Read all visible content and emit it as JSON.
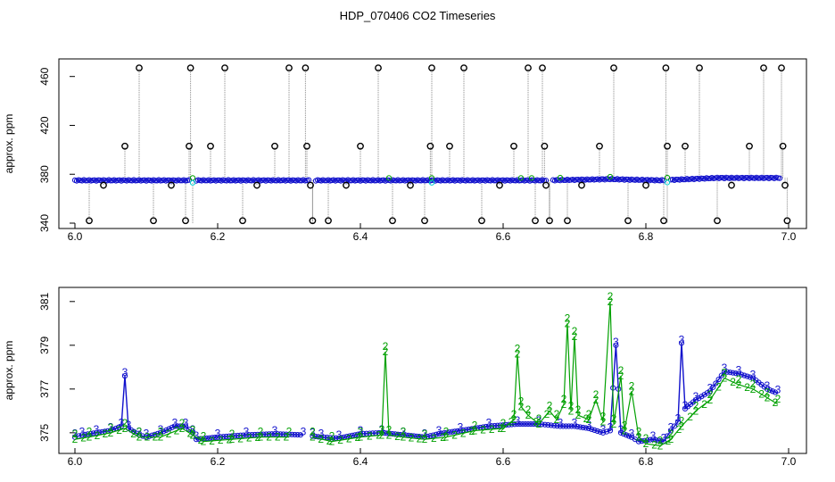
{
  "title": "HDP_070406  CO2 Timeseries",
  "colors": {
    "black": "#000000",
    "grey": "#888888",
    "blue": "#1010cc",
    "green": "#00a000",
    "cyan": "#00cccc"
  },
  "chart_data": [
    {
      "type": "scatter",
      "ylabel": "approx. ppm",
      "xlim": [
        6.0,
        7.0
      ],
      "ylim": [
        340,
        470
      ],
      "xticks": [
        "6.0",
        "6.2",
        "6.4",
        "6.6",
        "6.8",
        "7.0"
      ],
      "yticks": [
        "340",
        "380",
        "420",
        "460"
      ],
      "baseline": [
        {
          "x": 6.0,
          "y": 375
        },
        {
          "x": 6.33,
          "y": 375
        },
        {
          "x": 6.5,
          "y": 375
        },
        {
          "x": 6.66,
          "y": 375
        },
        {
          "x": 6.75,
          "y": 376
        },
        {
          "x": 6.82,
          "y": 375
        },
        {
          "x": 6.9,
          "y": 377
        },
        {
          "x": 6.99,
          "y": 377
        }
      ],
      "gaps": [
        6.165,
        6.333,
        6.665,
        6.83
      ],
      "spikes": [
        {
          "x": 6.02,
          "y": 342
        },
        {
          "x": 6.04,
          "y": 371
        },
        {
          "x": 6.07,
          "y": 403
        },
        {
          "x": 6.09,
          "y": 467
        },
        {
          "x": 6.11,
          "y": 342
        },
        {
          "x": 6.135,
          "y": 371
        },
        {
          "x": 6.155,
          "y": 342
        },
        {
          "x": 6.16,
          "y": 403
        },
        {
          "x": 6.162,
          "y": 467
        },
        {
          "x": 6.19,
          "y": 403
        },
        {
          "x": 6.21,
          "y": 467
        },
        {
          "x": 6.235,
          "y": 342
        },
        {
          "x": 6.255,
          "y": 371
        },
        {
          "x": 6.28,
          "y": 403
        },
        {
          "x": 6.3,
          "y": 467
        },
        {
          "x": 6.323,
          "y": 467
        },
        {
          "x": 6.325,
          "y": 403
        },
        {
          "x": 6.33,
          "y": 371
        },
        {
          "x": 6.333,
          "y": 342
        },
        {
          "x": 6.355,
          "y": 342
        },
        {
          "x": 6.38,
          "y": 371
        },
        {
          "x": 6.4,
          "y": 403
        },
        {
          "x": 6.425,
          "y": 467
        },
        {
          "x": 6.445,
          "y": 342
        },
        {
          "x": 6.47,
          "y": 371
        },
        {
          "x": 6.49,
          "y": 342
        },
        {
          "x": 6.498,
          "y": 403
        },
        {
          "x": 6.5,
          "y": 467
        },
        {
          "x": 6.525,
          "y": 403
        },
        {
          "x": 6.545,
          "y": 467
        },
        {
          "x": 6.57,
          "y": 342
        },
        {
          "x": 6.595,
          "y": 371
        },
        {
          "x": 6.615,
          "y": 403
        },
        {
          "x": 6.635,
          "y": 467
        },
        {
          "x": 6.645,
          "y": 342
        },
        {
          "x": 6.655,
          "y": 467
        },
        {
          "x": 6.658,
          "y": 403
        },
        {
          "x": 6.66,
          "y": 371
        },
        {
          "x": 6.665,
          "y": 342
        },
        {
          "x": 6.69,
          "y": 342
        },
        {
          "x": 6.71,
          "y": 371
        },
        {
          "x": 6.735,
          "y": 403
        },
        {
          "x": 6.755,
          "y": 467
        },
        {
          "x": 6.775,
          "y": 342
        },
        {
          "x": 6.8,
          "y": 371
        },
        {
          "x": 6.825,
          "y": 342
        },
        {
          "x": 6.828,
          "y": 467
        },
        {
          "x": 6.83,
          "y": 403
        },
        {
          "x": 6.855,
          "y": 403
        },
        {
          "x": 6.875,
          "y": 467
        },
        {
          "x": 6.9,
          "y": 342
        },
        {
          "x": 6.92,
          "y": 371
        },
        {
          "x": 6.945,
          "y": 403
        },
        {
          "x": 6.965,
          "y": 467
        },
        {
          "x": 6.99,
          "y": 467
        },
        {
          "x": 6.992,
          "y": 403
        },
        {
          "x": 6.995,
          "y": 371
        },
        {
          "x": 6.998,
          "y": 342
        }
      ]
    },
    {
      "type": "line",
      "ylabel": "approx. ppm",
      "xlim": [
        6.0,
        7.0
      ],
      "ylim": [
        374.3,
        381.4
      ],
      "xticks": [
        "6.0",
        "6.2",
        "6.4",
        "6.6",
        "6.8",
        "7.0"
      ],
      "yticks": [
        "375",
        "377",
        "379",
        "381"
      ],
      "series": [
        {
          "marker": "3",
          "points": [
            [
              6.0,
              374.8
            ],
            [
              6.01,
              374.9
            ],
            [
              6.03,
              375.0
            ],
            [
              6.05,
              375.1
            ],
            [
              6.065,
              375.3
            ],
            [
              6.07,
              377.6
            ],
            [
              6.075,
              375.2
            ],
            [
              6.09,
              374.9
            ],
            [
              6.1,
              374.8
            ],
            [
              6.12,
              375.0
            ],
            [
              6.14,
              375.3
            ],
            [
              6.155,
              375.3
            ],
            [
              6.165,
              375.0
            ],
            [
              6.17,
              374.7
            ],
            [
              6.2,
              374.8
            ],
            [
              6.24,
              374.9
            ],
            [
              6.28,
              374.95
            ],
            [
              6.32,
              374.9
            ],
            [
              6.333,
              374.85
            ],
            [
              6.345,
              374.8
            ],
            [
              6.37,
              374.75
            ],
            [
              6.4,
              374.95
            ],
            [
              6.43,
              375.0
            ],
            [
              6.46,
              374.9
            ],
            [
              6.49,
              374.8
            ],
            [
              6.51,
              374.95
            ],
            [
              6.54,
              375.1
            ],
            [
              6.58,
              375.3
            ],
            [
              6.62,
              375.4
            ],
            [
              6.65,
              375.4
            ],
            [
              6.68,
              375.3
            ],
            [
              6.7,
              375.3
            ],
            [
              6.72,
              375.2
            ],
            [
              6.74,
              375.0
            ],
            [
              6.75,
              375.1
            ],
            [
              6.758,
              379.0
            ],
            [
              6.765,
              375.0
            ],
            [
              6.78,
              374.8
            ],
            [
              6.79,
              374.6
            ],
            [
              6.81,
              374.7
            ],
            [
              6.825,
              374.6
            ],
            [
              6.835,
              375.1
            ],
            [
              6.845,
              375.5
            ],
            [
              6.85,
              379.1
            ],
            [
              6.855,
              376.1
            ],
            [
              6.87,
              376.5
            ],
            [
              6.89,
              376.9
            ],
            [
              6.91,
              377.8
            ],
            [
              6.93,
              377.7
            ],
            [
              6.95,
              377.5
            ],
            [
              6.97,
              377.0
            ],
            [
              6.985,
              376.8
            ]
          ]
        },
        {
          "marker": "2",
          "points": [
            [
              6.0,
              374.7
            ],
            [
              6.02,
              374.8
            ],
            [
              6.05,
              375.0
            ],
            [
              6.07,
              375.2
            ],
            [
              6.09,
              374.8
            ],
            [
              6.12,
              374.8
            ],
            [
              6.15,
              375.2
            ],
            [
              6.165,
              374.9
            ],
            [
              6.18,
              374.6
            ],
            [
              6.22,
              374.7
            ],
            [
              6.26,
              374.8
            ],
            [
              6.3,
              374.8
            ],
            [
              6.333,
              374.8
            ],
            [
              6.36,
              374.6
            ],
            [
              6.4,
              374.8
            ],
            [
              6.43,
              374.9
            ],
            [
              6.435,
              378.7
            ],
            [
              6.44,
              374.9
            ],
            [
              6.46,
              374.8
            ],
            [
              6.49,
              374.7
            ],
            [
              6.52,
              374.8
            ],
            [
              6.56,
              375.1
            ],
            [
              6.6,
              375.2
            ],
            [
              6.615,
              375.6
            ],
            [
              6.62,
              378.6
            ],
            [
              6.625,
              376.2
            ],
            [
              6.635,
              375.8
            ],
            [
              6.65,
              375.4
            ],
            [
              6.665,
              376.0
            ],
            [
              6.675,
              375.6
            ],
            [
              6.685,
              376.3
            ],
            [
              6.69,
              380.0
            ],
            [
              6.695,
              376.0
            ],
            [
              6.7,
              379.4
            ],
            [
              6.705,
              375.8
            ],
            [
              6.72,
              375.6
            ],
            [
              6.73,
              376.5
            ],
            [
              6.74,
              375.5
            ],
            [
              6.75,
              381.0
            ],
            [
              6.755,
              375.4
            ],
            [
              6.765,
              377.6
            ],
            [
              6.77,
              375.1
            ],
            [
              6.78,
              376.9
            ],
            [
              6.79,
              374.8
            ],
            [
              6.8,
              374.5
            ],
            [
              6.82,
              374.4
            ],
            [
              6.835,
              374.7
            ],
            [
              6.85,
              375.3
            ],
            [
              6.87,
              376.0
            ],
            [
              6.89,
              376.5
            ],
            [
              6.91,
              377.5
            ],
            [
              6.93,
              377.2
            ],
            [
              6.95,
              377.0
            ],
            [
              6.97,
              376.6
            ],
            [
              6.985,
              376.3
            ]
          ]
        }
      ]
    }
  ]
}
